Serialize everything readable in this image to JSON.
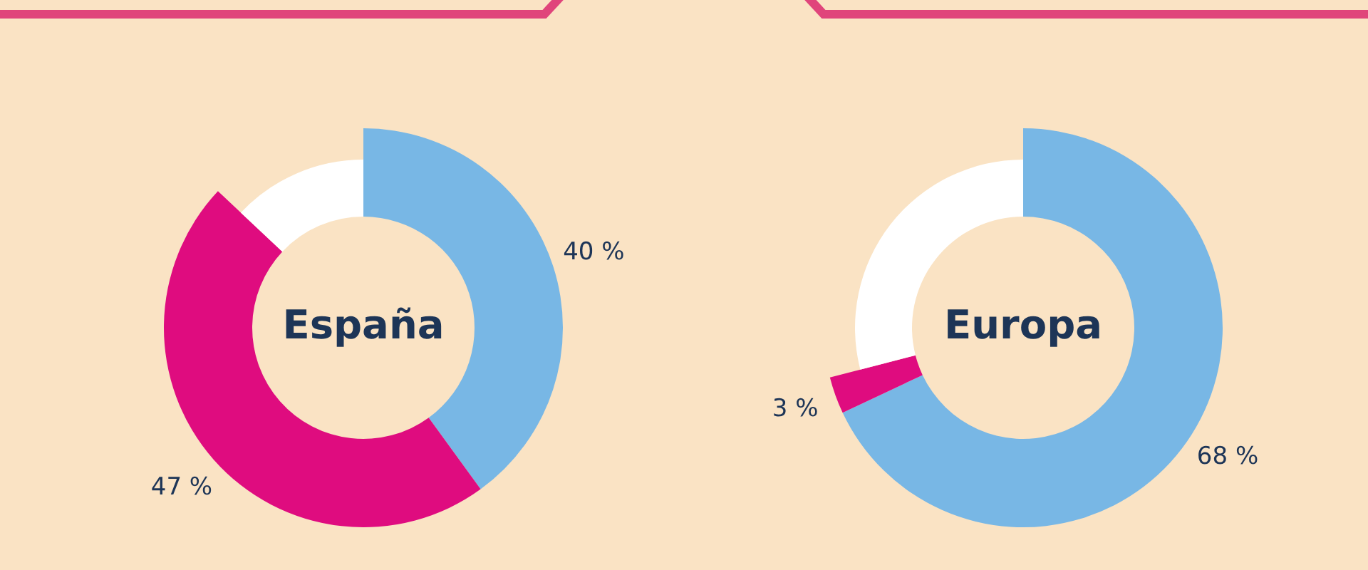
{
  "chart_data": [
    {
      "type": "donut",
      "title": "España",
      "categories": [
        null,
        null,
        null
      ],
      "values": [
        40,
        47,
        13
      ],
      "colors": [
        "#78b7e5",
        "#df0c7f",
        "#ffffff"
      ],
      "value_labels": [
        "40 %",
        "47 %",
        null
      ]
    },
    {
      "type": "donut",
      "title": "Europa",
      "categories": [
        null,
        null,
        null
      ],
      "values": [
        68,
        3,
        29
      ],
      "colors": [
        "#78b7e5",
        "#df0c7f",
        "#ffffff"
      ],
      "value_labels": [
        "68 %",
        "3 %",
        null
      ]
    }
  ]
}
